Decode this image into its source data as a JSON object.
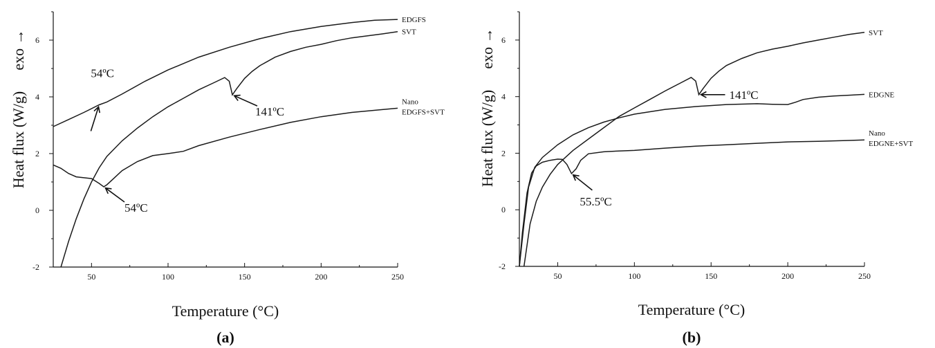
{
  "colors": {
    "curve": "#1a1a1a",
    "axis": "#111111",
    "background": "#ffffff"
  },
  "chart_data": [
    {
      "type": "line",
      "panel_label": "(a)",
      "xlabel": "Temperature (°C)",
      "ylabel": "Heat flux (W/g)",
      "ylabel_extra": "exo →",
      "xlim": [
        25,
        250
      ],
      "ylim": [
        -2,
        7
      ],
      "xticks": [
        50,
        100,
        150,
        200,
        250
      ],
      "yticks": [
        -2,
        0,
        2,
        4,
        6
      ],
      "grid": false,
      "series": [
        {
          "name": "EDGFS",
          "x": [
            25,
            35,
            45,
            55,
            60,
            70,
            85,
            100,
            120,
            140,
            160,
            180,
            200,
            220,
            235,
            250
          ],
          "y": [
            2.95,
            3.2,
            3.45,
            3.72,
            3.82,
            4.1,
            4.55,
            4.95,
            5.4,
            5.75,
            6.05,
            6.3,
            6.48,
            6.62,
            6.7,
            6.73
          ]
        },
        {
          "name": "SVT",
          "x": [
            30,
            35,
            40,
            45,
            50,
            55,
            60,
            70,
            80,
            90,
            100,
            110,
            120,
            130,
            137,
            140,
            142,
            145,
            150,
            155,
            160,
            170,
            180,
            190,
            200,
            210,
            220,
            230,
            240,
            250
          ],
          "y": [
            -2.0,
            -1.1,
            -0.3,
            0.4,
            1.0,
            1.5,
            1.9,
            2.45,
            2.9,
            3.3,
            3.65,
            3.95,
            4.25,
            4.5,
            4.68,
            4.55,
            4.07,
            4.3,
            4.65,
            4.9,
            5.1,
            5.4,
            5.6,
            5.75,
            5.85,
            5.98,
            6.08,
            6.15,
            6.22,
            6.3
          ]
        },
        {
          "name": "Nano EDGFS+SVT",
          "name_lines": [
            "Nano",
            "EDGFS+SVT"
          ],
          "x": [
            25,
            30,
            35,
            40,
            45,
            50,
            55,
            58,
            60,
            65,
            70,
            80,
            90,
            100,
            110,
            120,
            140,
            160,
            180,
            200,
            220,
            240,
            250
          ],
          "y": [
            1.6,
            1.48,
            1.3,
            1.18,
            1.15,
            1.12,
            0.95,
            0.83,
            0.9,
            1.15,
            1.4,
            1.72,
            1.93,
            2.0,
            2.08,
            2.28,
            2.58,
            2.85,
            3.1,
            3.3,
            3.45,
            3.55,
            3.6
          ]
        }
      ],
      "annotations": [
        {
          "text": "54ºC",
          "x": 55,
          "y": 3.72
        },
        {
          "text": "141ºC",
          "x": 142,
          "y": 4.07
        },
        {
          "text": "54ºC",
          "x": 58,
          "y": 0.83
        }
      ]
    },
    {
      "type": "line",
      "panel_label": "(b)",
      "xlabel": "Temperature (°C)",
      "ylabel": "Heat flux (W/g)",
      "ylabel_extra": "exo →",
      "xlim": [
        25,
        250
      ],
      "ylim": [
        -2,
        7
      ],
      "xticks": [
        50,
        100,
        150,
        200,
        250
      ],
      "yticks": [
        -2,
        0,
        2,
        4,
        6
      ],
      "grid": false,
      "series": [
        {
          "name": "SVT",
          "x": [
            28,
            32,
            36,
            40,
            45,
            50,
            55,
            60,
            70,
            80,
            90,
            100,
            110,
            120,
            130,
            137,
            140,
            142,
            145,
            150,
            155,
            160,
            170,
            180,
            190,
            200,
            210,
            220,
            230,
            240,
            250
          ],
          "y": [
            -2.0,
            -0.5,
            0.3,
            0.8,
            1.25,
            1.6,
            1.85,
            2.1,
            2.5,
            2.9,
            3.3,
            3.6,
            3.9,
            4.2,
            4.48,
            4.68,
            4.55,
            4.07,
            4.3,
            4.65,
            4.9,
            5.1,
            5.35,
            5.55,
            5.68,
            5.78,
            5.9,
            6.0,
            6.1,
            6.2,
            6.27
          ]
        },
        {
          "name": "EDGNE",
          "x": [
            25,
            28,
            31,
            35,
            40,
            50,
            60,
            70,
            80,
            90,
            100,
            120,
            140,
            160,
            180,
            190,
            200,
            205,
            210,
            220,
            230,
            240,
            250
          ],
          "y": [
            -2.0,
            -0.5,
            0.8,
            1.5,
            1.85,
            2.3,
            2.65,
            2.9,
            3.1,
            3.25,
            3.38,
            3.55,
            3.65,
            3.72,
            3.75,
            3.73,
            3.72,
            3.8,
            3.9,
            3.98,
            4.02,
            4.05,
            4.08
          ]
        },
        {
          "name": "Nano EDGNE+SVT",
          "name_lines": [
            "Nano",
            "EDGNE+SVT"
          ],
          "x": [
            25,
            27,
            30,
            33,
            36,
            40,
            45,
            50,
            53,
            56,
            59,
            62,
            65,
            70,
            80,
            90,
            100,
            120,
            140,
            160,
            180,
            200,
            220,
            240,
            250
          ],
          "y": [
            -2.0,
            -0.8,
            0.6,
            1.3,
            1.55,
            1.68,
            1.75,
            1.79,
            1.78,
            1.6,
            1.28,
            1.45,
            1.75,
            1.98,
            2.05,
            2.08,
            2.1,
            2.18,
            2.25,
            2.3,
            2.35,
            2.4,
            2.42,
            2.45,
            2.47
          ]
        }
      ],
      "annotations": [
        {
          "text": "141ºC",
          "x": 142,
          "y": 4.07
        },
        {
          "text": "55.5ºC",
          "x": 59,
          "y": 1.28
        }
      ]
    }
  ]
}
